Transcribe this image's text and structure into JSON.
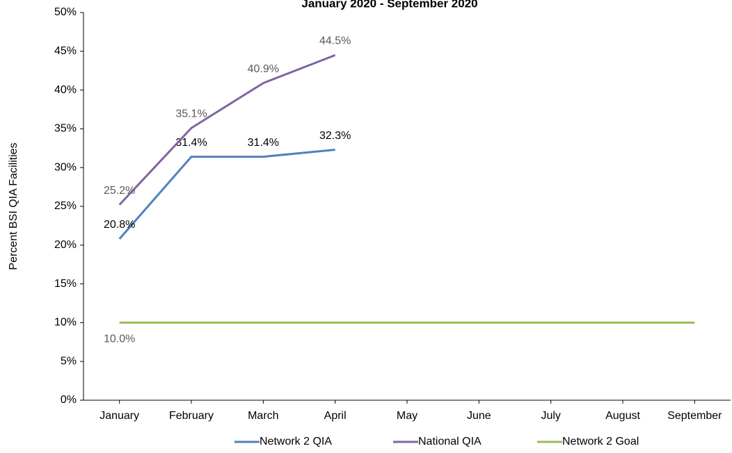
{
  "chart_data": {
    "type": "line",
    "title": "January 2020 - September 2020",
    "y_label": "Percent BSI QIA Facilities",
    "categories": [
      "January",
      "February",
      "March",
      "April",
      "May",
      "June",
      "July",
      "August",
      "September"
    ],
    "series": [
      {
        "name": "Network 2 QIA",
        "color": "#4f81bd",
        "label_color": "#000000",
        "values": [
          20.8,
          31.4,
          31.4,
          32.3,
          null,
          null,
          null,
          null,
          null
        ],
        "value_labels": [
          "20.8%",
          "31.4%",
          "31.4%",
          "32.3%",
          null,
          null,
          null,
          null,
          null
        ]
      },
      {
        "name": "National QIA",
        "color": "#8064a2",
        "label_color": "#595959",
        "values": [
          25.2,
          35.1,
          40.9,
          44.5,
          null,
          null,
          null,
          null,
          null
        ],
        "value_labels": [
          "25.2%",
          "35.1%",
          "40.9%",
          "44.5%",
          null,
          null,
          null,
          null,
          null
        ]
      },
      {
        "name": "Network 2 Goal",
        "color": "#9bbb59",
        "label_color": "#595959",
        "values": [
          10.0,
          10.0,
          10.0,
          10.0,
          10.0,
          10.0,
          10.0,
          10.0,
          10.0
        ],
        "value_labels": [
          "10.0%",
          null,
          null,
          null,
          null,
          null,
          null,
          null,
          null
        ]
      }
    ],
    "ylim": [
      0,
      50
    ],
    "yticks": [
      {
        "value": 0,
        "label": "0%"
      },
      {
        "value": 5,
        "label": "5%"
      },
      {
        "value": 10,
        "label": "10%"
      },
      {
        "value": 15,
        "label": "15%"
      },
      {
        "value": 20,
        "label": "20%"
      },
      {
        "value": 25,
        "label": "25%"
      },
      {
        "value": 30,
        "label": "30%"
      },
      {
        "value": 35,
        "label": "35%"
      },
      {
        "value": 40,
        "label": "40%"
      },
      {
        "value": 45,
        "label": "45%"
      },
      {
        "value": 50,
        "label": "50%"
      }
    ],
    "grid": false,
    "legend": "bottom"
  }
}
